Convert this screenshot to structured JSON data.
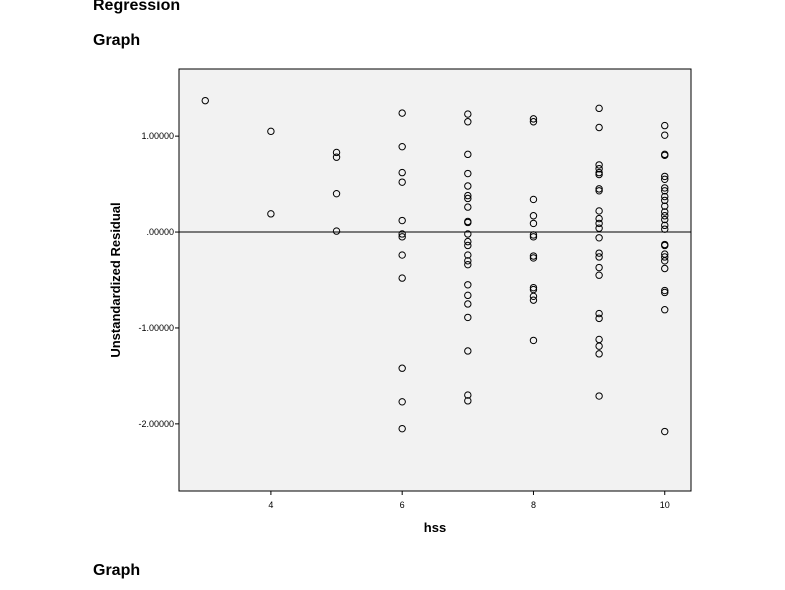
{
  "headings": {
    "regression": "Regression",
    "graph_1": "Graph",
    "graph_2": "Graph"
  },
  "chart_data": {
    "type": "scatter",
    "xlabel": "hss",
    "ylabel": "Unstandardized Residual",
    "xlim": [
      2.6,
      10.4
    ],
    "ylim": [
      -2.7,
      1.7
    ],
    "xticks": [
      4,
      6,
      8,
      10
    ],
    "xtick_labels": [
      "4",
      "6",
      "8",
      "10"
    ],
    "yticks": [
      1,
      0,
      -1,
      -2
    ],
    "ytick_labels": [
      "1.00000",
      ".00000",
      "-1.00000",
      "-2.00000"
    ],
    "reference_line_y": 0,
    "grid": false,
    "plot_background": "#f2f2f2",
    "marker": "open-circle",
    "points": [
      [
        3,
        1.37
      ],
      [
        4,
        1.05
      ],
      [
        4,
        0.19
      ],
      [
        5,
        0.83
      ],
      [
        5,
        0.78
      ],
      [
        5,
        0.4
      ],
      [
        5,
        0.01
      ],
      [
        6,
        1.24
      ],
      [
        6,
        0.89
      ],
      [
        6,
        0.62
      ],
      [
        6,
        0.52
      ],
      [
        6,
        0.12
      ],
      [
        6,
        -0.02
      ],
      [
        6,
        -0.05
      ],
      [
        6,
        -0.24
      ],
      [
        6,
        -0.48
      ],
      [
        6,
        -1.42
      ],
      [
        6,
        -1.77
      ],
      [
        6,
        -2.05
      ],
      [
        7,
        1.23
      ],
      [
        7,
        1.15
      ],
      [
        7,
        0.81
      ],
      [
        7,
        0.61
      ],
      [
        7,
        0.48
      ],
      [
        7,
        0.38
      ],
      [
        7,
        0.35
      ],
      [
        7,
        0.26
      ],
      [
        7,
        0.11
      ],
      [
        7,
        0.1
      ],
      [
        7,
        -0.02
      ],
      [
        7,
        -0.1
      ],
      [
        7,
        -0.14
      ],
      [
        7,
        -0.24
      ],
      [
        7,
        -0.3
      ],
      [
        7,
        -0.34
      ],
      [
        7,
        -0.55
      ],
      [
        7,
        -0.66
      ],
      [
        7,
        -0.75
      ],
      [
        7,
        -0.89
      ],
      [
        7,
        -1.24
      ],
      [
        7,
        -1.7
      ],
      [
        7,
        -1.76
      ],
      [
        8,
        1.18
      ],
      [
        8,
        1.15
      ],
      [
        8,
        0.34
      ],
      [
        8,
        0.17
      ],
      [
        8,
        0.09
      ],
      [
        8,
        -0.03
      ],
      [
        8,
        -0.05
      ],
      [
        8,
        -0.25
      ],
      [
        8,
        -0.27
      ],
      [
        8,
        -0.58
      ],
      [
        8,
        -0.6
      ],
      [
        8,
        -0.67
      ],
      [
        8,
        -0.71
      ],
      [
        8,
        -1.13
      ],
      [
        9,
        1.29
      ],
      [
        9,
        1.09
      ],
      [
        9,
        0.7
      ],
      [
        9,
        0.66
      ],
      [
        9,
        0.62
      ],
      [
        9,
        0.6
      ],
      [
        9,
        0.45
      ],
      [
        9,
        0.43
      ],
      [
        9,
        0.22
      ],
      [
        9,
        0.14
      ],
      [
        9,
        0.09
      ],
      [
        9,
        0.04
      ],
      [
        9,
        -0.06
      ],
      [
        9,
        -0.22
      ],
      [
        9,
        -0.26
      ],
      [
        9,
        -0.37
      ],
      [
        9,
        -0.45
      ],
      [
        9,
        -0.85
      ],
      [
        9,
        -0.9
      ],
      [
        9,
        -1.12
      ],
      [
        9,
        -1.19
      ],
      [
        9,
        -1.27
      ],
      [
        9,
        -1.71
      ],
      [
        10,
        1.11
      ],
      [
        10,
        1.01
      ],
      [
        10,
        0.81
      ],
      [
        10,
        0.8
      ],
      [
        10,
        0.58
      ],
      [
        10,
        0.55
      ],
      [
        10,
        0.46
      ],
      [
        10,
        0.43
      ],
      [
        10,
        0.37
      ],
      [
        10,
        0.33
      ],
      [
        10,
        0.27
      ],
      [
        10,
        0.21
      ],
      [
        10,
        0.17
      ],
      [
        10,
        0.13
      ],
      [
        10,
        0.07
      ],
      [
        10,
        0.03
      ],
      [
        10,
        -0.13
      ],
      [
        10,
        -0.14
      ],
      [
        10,
        -0.23
      ],
      [
        10,
        -0.26
      ],
      [
        10,
        -0.3
      ],
      [
        10,
        -0.38
      ],
      [
        10,
        -0.61
      ],
      [
        10,
        -0.63
      ],
      [
        10,
        -0.81
      ],
      [
        10,
        -2.08
      ]
    ]
  }
}
